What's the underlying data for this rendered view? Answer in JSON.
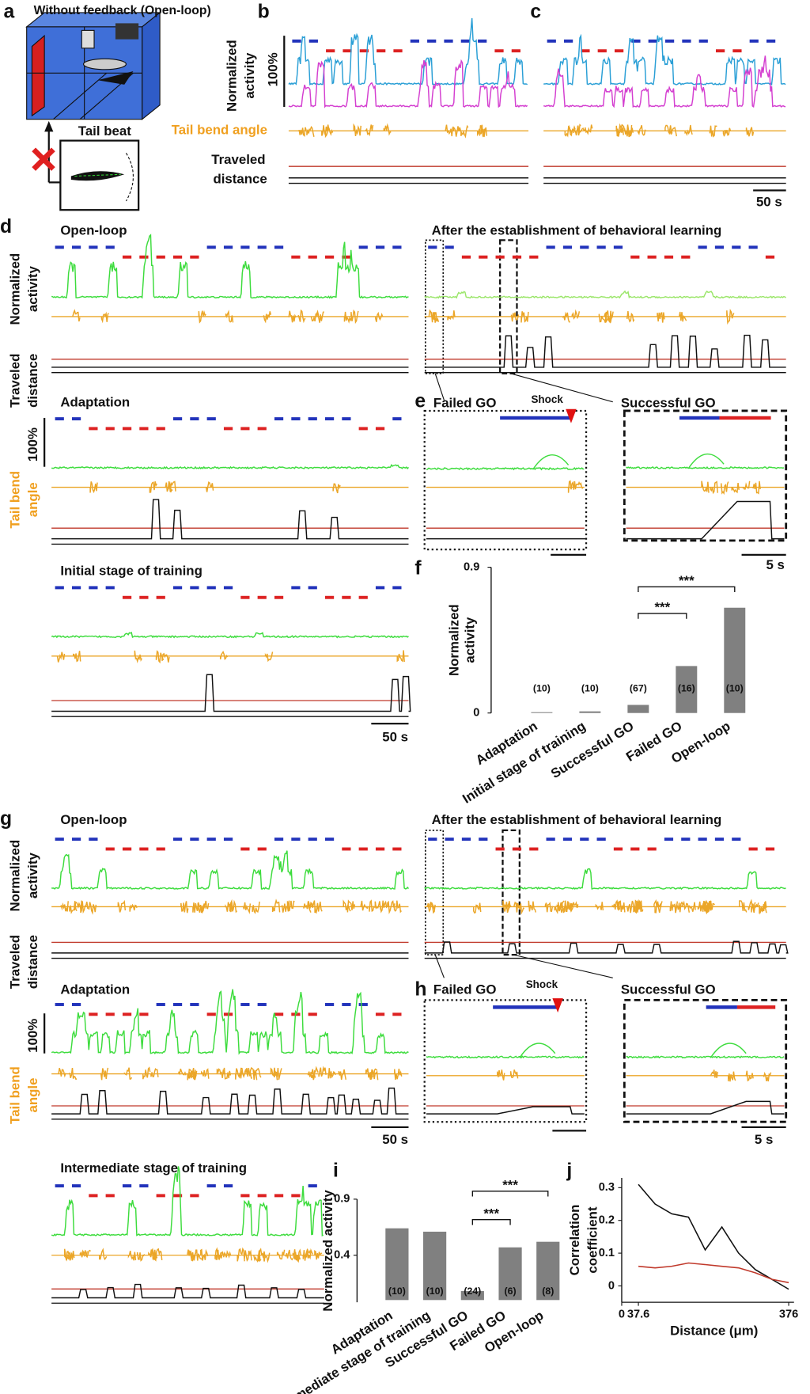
{
  "panels": {
    "a": {
      "label": "a",
      "title": "Without feedback (Open-loop)",
      "inset": "Tail beat"
    },
    "b": {
      "label": "b",
      "activity_label": [
        "Normalized",
        "activity"
      ],
      "scale": "100%",
      "tail_label": "Tail bend angle",
      "distance_label": [
        "Traveled",
        "distance"
      ]
    },
    "c": {
      "label": "c",
      "time_scale": "50 s"
    },
    "d": {
      "label": "d",
      "open_loop": "Open-loop",
      "after": "After the establishment of behavioral learning",
      "activity_label": [
        "Normalized",
        "activity"
      ],
      "distance_label": [
        "Traveled",
        "distance"
      ],
      "adaptation": "Adaptation",
      "scale": "100%",
      "tail_label": [
        "Tail bend",
        "angle"
      ],
      "initial": "Initial stage of training",
      "time_scale": "50 s"
    },
    "e": {
      "label": "e",
      "failed": "Failed GO",
      "shock": "Shock",
      "successful": "Successful GO",
      "time_scale": "5 s"
    },
    "g": {
      "label": "g",
      "open_loop": "Open-loop",
      "after": "After the establishment of behavioral learning",
      "activity_label": [
        "Normalized",
        "activity"
      ],
      "distance_label": [
        "Traveled",
        "distance"
      ],
      "adaptation": "Adaptation",
      "scale": "100%",
      "tail_label": [
        "Tail bend",
        "angle"
      ],
      "intermediate": "Intermediate stage of training",
      "time_scale": "50 s"
    },
    "h": {
      "label": "h",
      "failed": "Failed GO",
      "shock": "Shock",
      "successful": "Successful GO",
      "time_scale": "5 s"
    }
  },
  "chart_data": [
    {
      "type": "bar",
      "label": "f",
      "ylabel": [
        "Normalized",
        "activity"
      ],
      "categories": [
        "Adaptation",
        "Initial stage of training",
        "Successful GO",
        "Failed GO",
        "Open-loop"
      ],
      "values": [
        0.005,
        0.01,
        0.05,
        0.29,
        0.65
      ],
      "counts": [
        "(10)",
        "(10)",
        "(67)",
        "(16)",
        "(10)"
      ],
      "significance": [
        "***",
        "***"
      ],
      "color": "#808080",
      "ylim": [
        0,
        0.9
      ],
      "yticks": [
        0,
        0.9
      ]
    },
    {
      "type": "bar",
      "label": "i",
      "ylabel": [
        "Normalized activity"
      ],
      "categories": [
        "Adaptation",
        "Intermediate stage of training",
        "Successful GO",
        "Failed GO",
        "Open-loop"
      ],
      "values": [
        0.64,
        0.61,
        0.08,
        0.47,
        0.52
      ],
      "counts": [
        "(10)",
        "(10)",
        "(24)",
        "(6)",
        "(8)"
      ],
      "significance": [
        "***",
        "***"
      ],
      "color": "#808080",
      "ylim": [
        -0.02,
        0.9
      ],
      "yticks": [
        0.4,
        0.9
      ]
    },
    {
      "type": "line",
      "label": "j",
      "ylabel": [
        "Correlation",
        "coefficient"
      ],
      "xlabel": "Distance (μm)",
      "x": [
        37.6,
        75.2,
        112.8,
        150.4,
        188,
        225.6,
        263.2,
        300.8,
        338.4,
        376
      ],
      "series": [
        {
          "color": "#111111",
          "values": [
            0.31,
            0.25,
            0.22,
            0.21,
            0.11,
            0.18,
            0.1,
            0.05,
            0.02,
            -0.01
          ]
        },
        {
          "color": "#c0392b",
          "values": [
            0.06,
            0.055,
            0.06,
            0.07,
            0.065,
            0.06,
            0.055,
            0.04,
            0.02,
            0.01
          ]
        }
      ],
      "xlim": [
        0,
        376
      ],
      "ylim": [
        -0.05,
        0.33
      ],
      "xticks": [
        0,
        37.6,
        376
      ],
      "yticks": [
        0,
        0.1,
        0.2,
        0.3
      ]
    }
  ]
}
